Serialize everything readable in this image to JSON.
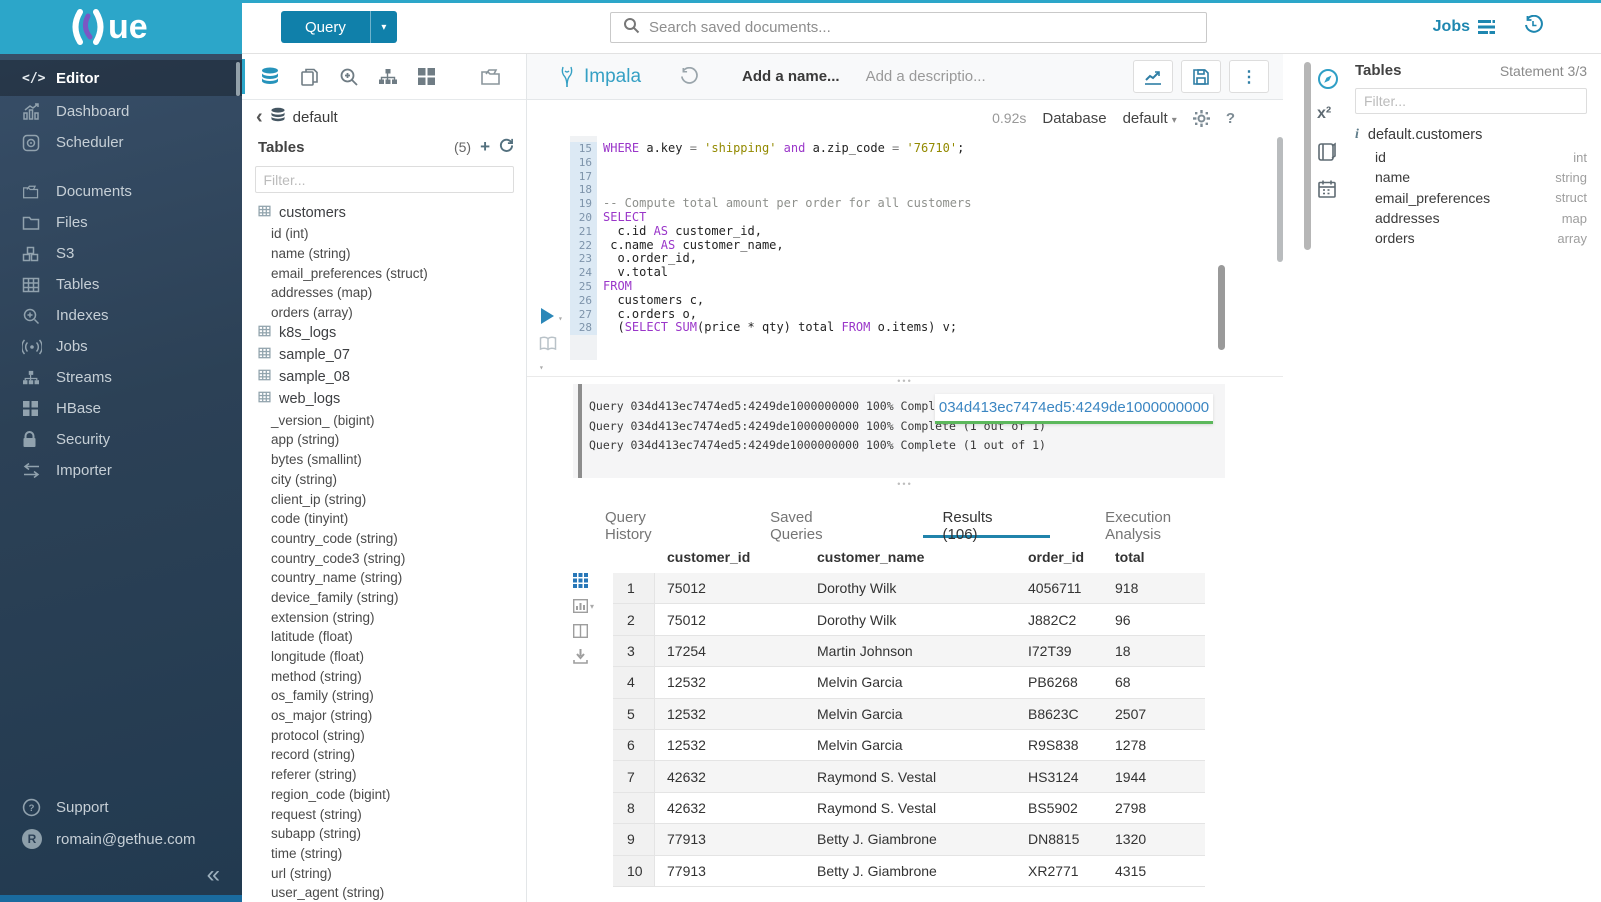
{
  "brand": {
    "logo_text": "ue",
    "accent": "#2ca6c9",
    "logo_purple": "#7b57c4"
  },
  "topbar": {
    "query_button": "Query",
    "search_placeholder": "Search saved documents...",
    "jobs_label": "Jobs"
  },
  "sidebar": {
    "items": [
      {
        "id": "editor",
        "label": "Editor",
        "icon": "code-icon",
        "active": true,
        "gap": false
      },
      {
        "id": "dashboard",
        "label": "Dashboard",
        "icon": "dashboard-icon",
        "active": false,
        "gap": false
      },
      {
        "id": "scheduler",
        "label": "Scheduler",
        "icon": "scheduler-icon",
        "active": false,
        "gap": false
      },
      {
        "id": "documents",
        "label": "Documents",
        "icon": "documents-icon",
        "active": false,
        "gap": true
      },
      {
        "id": "files",
        "label": "Files",
        "icon": "folder-icon",
        "active": false,
        "gap": false
      },
      {
        "id": "s3",
        "label": "S3",
        "icon": "cubes-icon",
        "active": false,
        "gap": false
      },
      {
        "id": "tables",
        "label": "Tables",
        "icon": "table-icon",
        "active": false,
        "gap": false
      },
      {
        "id": "indexes",
        "label": "Indexes",
        "icon": "search-plus-icon",
        "active": false,
        "gap": false
      },
      {
        "id": "jobs",
        "label": "Jobs",
        "icon": "broadcast-icon",
        "active": false,
        "gap": false
      },
      {
        "id": "streams",
        "label": "Streams",
        "icon": "sitemap-icon",
        "active": false,
        "gap": false
      },
      {
        "id": "hbase",
        "label": "HBase",
        "icon": "grid4-icon",
        "active": false,
        "gap": false
      },
      {
        "id": "security",
        "label": "Security",
        "icon": "lock-icon",
        "active": false,
        "gap": false
      },
      {
        "id": "importer",
        "label": "Importer",
        "icon": "swap-icon",
        "active": false,
        "gap": false
      }
    ],
    "support_label": "Support",
    "user_email": "romain@gethue.com",
    "user_initial": "R",
    "collapse_glyph": "«"
  },
  "assist": {
    "back_glyph": "‹",
    "database": "default",
    "tables_label": "Tables",
    "tables_count": "(5)",
    "filter_placeholder": "Filter...",
    "tables": [
      {
        "name": "customers",
        "columns": [
          "id (int)",
          "name (string)",
          "email_preferences (struct)",
          "addresses (map)",
          "orders (array)"
        ]
      },
      {
        "name": "k8s_logs",
        "columns": []
      },
      {
        "name": "sample_07",
        "columns": []
      },
      {
        "name": "sample_08",
        "columns": []
      },
      {
        "name": "web_logs",
        "columns": [
          "_version_ (bigint)",
          "app (string)",
          "bytes (smallint)",
          "city (string)",
          "client_ip (string)",
          "code (tinyint)",
          "country_code (string)",
          "country_code3 (string)",
          "country_name (string)",
          "device_family (string)",
          "extension (string)",
          "latitude (float)",
          "longitude (float)",
          "method (string)",
          "os_family (string)",
          "os_major (string)",
          "protocol (string)",
          "record (string)",
          "referer (string)",
          "region_code (bigint)",
          "request (string)",
          "subapp (string)",
          "time (string)",
          "url (string)",
          "user_agent (string)"
        ]
      }
    ]
  },
  "editor": {
    "engine": "Impala",
    "name_placeholder": "Add a name...",
    "desc_placeholder": "Add a descriptio...",
    "exec_time": "0.92s",
    "database_label": "Database",
    "database_value": "default",
    "help_glyph": "?",
    "code_lines": [
      {
        "n": 15,
        "seg": [
          {
            "t": "k",
            "v": "WHERE"
          },
          {
            "t": "p",
            "v": " a.key "
          },
          {
            "t": "o",
            "v": "="
          },
          {
            "t": "p",
            "v": " "
          },
          {
            "t": "s",
            "v": "'shipping'"
          },
          {
            "t": "p",
            "v": " "
          },
          {
            "t": "k",
            "v": "and"
          },
          {
            "t": "p",
            "v": " a.zip_code "
          },
          {
            "t": "o",
            "v": "="
          },
          {
            "t": "p",
            "v": " "
          },
          {
            "t": "s",
            "v": "'76710'"
          },
          {
            "t": "p",
            "v": ";"
          }
        ]
      },
      {
        "n": 16,
        "seg": []
      },
      {
        "n": 17,
        "seg": []
      },
      {
        "n": 18,
        "seg": []
      },
      {
        "n": 19,
        "seg": [
          {
            "t": "c",
            "v": "-- Compute total amount per order for all customers"
          }
        ]
      },
      {
        "n": 20,
        "seg": [
          {
            "t": "k",
            "v": "SELECT"
          }
        ]
      },
      {
        "n": 21,
        "seg": [
          {
            "t": "p",
            "v": "  c.id "
          },
          {
            "t": "k",
            "v": "AS"
          },
          {
            "t": "p",
            "v": " customer_id,"
          }
        ]
      },
      {
        "n": 22,
        "seg": [
          {
            "t": "p",
            "v": " c.name "
          },
          {
            "t": "k",
            "v": "AS"
          },
          {
            "t": "p",
            "v": " customer_name,"
          }
        ]
      },
      {
        "n": 23,
        "seg": [
          {
            "t": "p",
            "v": "  o.order_id,"
          }
        ]
      },
      {
        "n": 24,
        "seg": [
          {
            "t": "p",
            "v": "  v.total"
          }
        ]
      },
      {
        "n": 25,
        "seg": [
          {
            "t": "k",
            "v": "FROM"
          }
        ]
      },
      {
        "n": 26,
        "seg": [
          {
            "t": "p",
            "v": "  customers c,"
          }
        ]
      },
      {
        "n": 27,
        "seg": [
          {
            "t": "p",
            "v": "  c.orders o,"
          }
        ]
      },
      {
        "n": 28,
        "seg": [
          {
            "t": "p",
            "v": "  ("
          },
          {
            "t": "k",
            "v": "SELECT"
          },
          {
            "t": "p",
            "v": " "
          },
          {
            "t": "k",
            "v": "SUM"
          },
          {
            "t": "p",
            "v": "(price * qty) total "
          },
          {
            "t": "k",
            "v": "FROM"
          },
          {
            "t": "p",
            "v": " o.items) v;"
          }
        ]
      }
    ]
  },
  "logs": {
    "lines": [
      "Query 034d413ec7474ed5:4249de1000000000 100% Complete (1 out of 1)",
      "Query 034d413ec7474ed5:4249de1000000000 100% Complete (1 out of 1)",
      "Query 034d413ec7474ed5:4249de1000000000 100% Complete (1 out of 1)"
    ],
    "tooltip": "034d413ec7474ed5:4249de1000000000",
    "success_color": "#5cb85c"
  },
  "results": {
    "tabs": [
      {
        "label": "Query History",
        "active": false
      },
      {
        "label": "Saved Queries",
        "active": false
      },
      {
        "label": "Results (106)",
        "active": true
      },
      {
        "label": "Execution Analysis",
        "active": false
      }
    ],
    "headers": [
      "customer_id",
      "customer_name",
      "order_id",
      "total"
    ],
    "rows": [
      [
        "1",
        "75012",
        "Dorothy Wilk",
        "4056711",
        "918"
      ],
      [
        "2",
        "75012",
        "Dorothy Wilk",
        "J882C2",
        "96"
      ],
      [
        "3",
        "17254",
        "Martin Johnson",
        "I72T39",
        "18"
      ],
      [
        "4",
        "12532",
        "Melvin Garcia",
        "PB6268",
        "68"
      ],
      [
        "5",
        "12532",
        "Melvin Garcia",
        "B8623C",
        "2507"
      ],
      [
        "6",
        "12532",
        "Melvin Garcia",
        "R9S838",
        "1278"
      ],
      [
        "7",
        "42632",
        "Raymond S. Vestal",
        "HS3124",
        "1944"
      ],
      [
        "8",
        "42632",
        "Raymond S. Vestal",
        "BS5902",
        "2798"
      ],
      [
        "9",
        "77913",
        "Betty J. Giambrone",
        "DN8815",
        "1320"
      ],
      [
        "10",
        "77913",
        "Betty J. Giambrone",
        "XR2771",
        "4315"
      ]
    ]
  },
  "right_panel": {
    "title": "Tables",
    "statement": "Statement 3/3",
    "filter_placeholder": "Filter...",
    "table_name": "default.customers",
    "columns": [
      {
        "name": "id",
        "type": "int"
      },
      {
        "name": "name",
        "type": "string"
      },
      {
        "name": "email_preferences",
        "type": "struct"
      },
      {
        "name": "addresses",
        "type": "map"
      },
      {
        "name": "orders",
        "type": "array"
      }
    ]
  }
}
